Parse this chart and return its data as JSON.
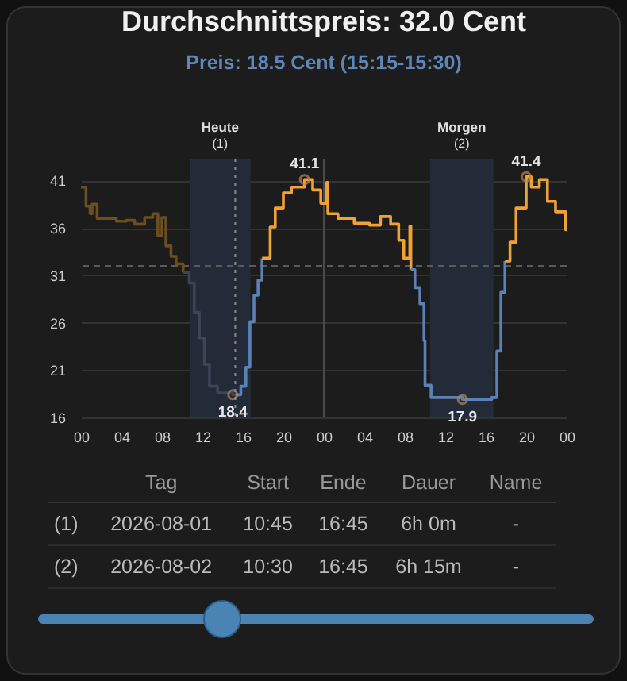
{
  "chart_data": [
    {
      "type": "step",
      "title": "Durchschnittspreis: 32.0 Cent",
      "subtitle": "Preis: 18.5 Cent (15:15-15:30)",
      "xlim": [
        0,
        48
      ],
      "xticks": [
        {
          "value": 0,
          "label": "00"
        },
        {
          "value": 4,
          "label": "04"
        },
        {
          "value": 8,
          "label": "08"
        },
        {
          "value": 12,
          "label": "12"
        },
        {
          "value": 16,
          "label": "16"
        },
        {
          "value": 20,
          "label": "20"
        },
        {
          "value": 24,
          "label": "00"
        },
        {
          "value": 28,
          "label": "04"
        },
        {
          "value": 32,
          "label": "08"
        },
        {
          "value": 36,
          "label": "12"
        },
        {
          "value": 40,
          "label": "16"
        },
        {
          "value": 44,
          "label": "20"
        },
        {
          "value": 48,
          "label": "00"
        }
      ],
      "ylim": [
        16,
        43.3
      ],
      "yticks": [
        16,
        21,
        26,
        31,
        36,
        41
      ],
      "grid": "y",
      "series": [
        {
          "color": "#6b4f1f",
          "x": [
            0,
            0.5,
            0.9,
            1.1,
            1.6,
            2.5,
            3.5,
            4.5,
            5.3,
            6.3,
            7.1,
            7.6,
            8.0,
            8.4,
            8.9,
            9.4,
            10.1
          ],
          "values": [
            40.3,
            38.3,
            37.5,
            38.5,
            37.0,
            37.0,
            36.7,
            36.8,
            36.4,
            37.1,
            37.5,
            35.2,
            37.1,
            34.1,
            33.0,
            32.2,
            31.3
          ]
        },
        {
          "color": "#3b4556",
          "x": [
            10.1,
            10.7,
            11.2,
            11.7,
            12.2,
            12.7,
            13.5,
            15.0,
            15.25
          ],
          "values": [
            31.3,
            30.2,
            27.1,
            24.4,
            21.6,
            19.3,
            18.6,
            18.4,
            18.4
          ]
        },
        {
          "color": "#5a82b6",
          "x": [
            15.25,
            15.8,
            16.3,
            16.7,
            17.1,
            17.5,
            17.9
          ],
          "values": [
            18.4,
            19.3,
            21.3,
            26.1,
            28.9,
            30.5,
            32.8
          ]
        },
        {
          "color": "#f2a233",
          "x": [
            17.9,
            18.7,
            19.2,
            20.0,
            20.8,
            22.1,
            22.9,
            23.7,
            24.3,
            24.4,
            25.4,
            27.0,
            28.5,
            29.6,
            30.6,
            31.4,
            31.9,
            32.5,
            32.6
          ],
          "values": [
            32.8,
            36.1,
            38.1,
            39.7,
            40.3,
            41.1,
            40.0,
            38.6,
            40.8,
            37.5,
            37.0,
            36.5,
            36.3,
            37.2,
            36.4,
            34.7,
            32.8,
            36.2,
            31.6
          ]
        },
        {
          "color": "#5a82b6",
          "x": [
            32.6,
            33.0,
            33.5,
            33.9,
            34.0,
            34.6,
            37.7,
            40.6,
            41.1,
            41.5,
            41.9
          ],
          "values": [
            31.6,
            29.7,
            28.0,
            24.1,
            19.4,
            18.1,
            17.9,
            18.1,
            23.0,
            29.2,
            32.5
          ]
        },
        {
          "color": "#f2a233",
          "x": [
            41.9,
            42.4,
            43.0,
            44.0,
            44.5,
            45.3,
            46.1,
            46.9,
            47.9,
            48
          ],
          "values": [
            32.5,
            34.5,
            38.1,
            41.4,
            40.3,
            41.1,
            38.8,
            37.7,
            35.8,
            35.8
          ]
        }
      ],
      "bands": [
        {
          "axis": "x",
          "from": 10.75,
          "to": 16.75,
          "label": "Heute\n(1)",
          "color": "#242b38"
        },
        {
          "axis": "x",
          "from": 34.5,
          "to": 40.75,
          "label": "Morgen\n(2)",
          "color": "#242b38"
        }
      ],
      "ref_lines": [
        {
          "axis": "y",
          "value": 32,
          "color": "#5a5a5a",
          "line_style": "dashed"
        },
        {
          "axis": "x",
          "value": 15.25,
          "color": "#8a8a8a",
          "line_style": "dotted"
        },
        {
          "axis": "x",
          "value": 24,
          "color": "#4a4a4a",
          "line_style": "solid"
        }
      ],
      "annotations": [
        {
          "text": "41.1",
          "x": 22.1,
          "y": 41.1
        },
        {
          "text": "18.4",
          "x": 15.0,
          "y": 18.4
        },
        {
          "text": "17.9",
          "x": 37.7,
          "y": 17.9
        },
        {
          "text": "41.4",
          "x": 44.0,
          "y": 41.4
        }
      ]
    },
    {
      "type": "other",
      "categories": [
        null,
        "Tag",
        "Start",
        "Ende",
        "Dauer",
        "Name"
      ],
      "cell_labels": [
        [
          "(1)",
          "2026-08-01",
          "10:45",
          "16:45",
          "6h 0m",
          "-"
        ],
        [
          "(2)",
          "2026-08-02",
          "10:30",
          "16:45",
          "6h 15m",
          "-"
        ]
      ]
    }
  ]
}
